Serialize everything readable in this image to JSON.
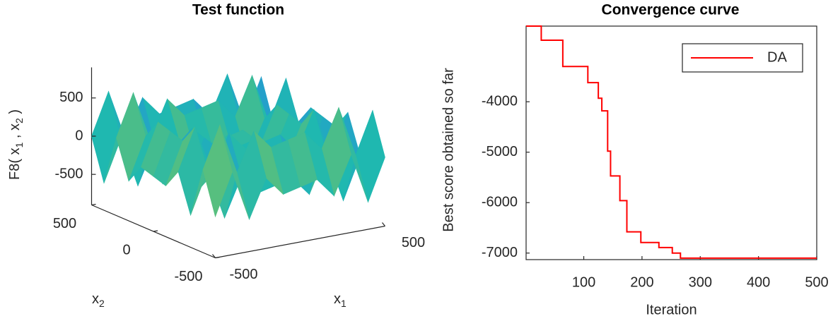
{
  "chart_data": [
    {
      "type": "surface",
      "title": "Test function",
      "zlabel": [
        "F8( x",
        "1",
        " , x",
        "2",
        " )"
      ],
      "xlabel": [
        "x",
        "1"
      ],
      "ylabel": [
        "x",
        "2"
      ],
      "x": [
        -500,
        -400,
        -300,
        -200,
        -100,
        0,
        100,
        200,
        300,
        400,
        500
      ],
      "y": [
        -500,
        -400,
        -300,
        -200,
        -100,
        0,
        100,
        200,
        300,
        400,
        500
      ],
      "z": [
        [
          -362,
          184,
          -481,
          19,
          -235,
          -181,
          -127,
          -381,
          119,
          -546,
          0
        ],
        [
          184,
          730,
          65,
          565,
          311,
          365,
          419,
          165,
          665,
          0,
          546
        ],
        [
          -481,
          65,
          -600,
          -100,
          -354,
          -300,
          -246,
          -500,
          0,
          -665,
          -119
        ],
        [
          19,
          565,
          -100,
          400,
          146,
          200,
          254,
          0,
          500,
          -165,
          381
        ],
        [
          -235,
          311,
          -354,
          146,
          -108,
          -54,
          0,
          -254,
          246,
          -419,
          127
        ],
        [
          -181,
          365,
          -300,
          200,
          -54,
          0,
          54,
          -200,
          300,
          -365,
          181
        ],
        [
          -127,
          419,
          -246,
          254,
          0,
          54,
          108,
          -146,
          354,
          -311,
          235
        ],
        [
          -381,
          165,
          -500,
          0,
          -254,
          -200,
          -146,
          -400,
          100,
          -565,
          -19
        ],
        [
          119,
          665,
          0,
          500,
          246,
          300,
          354,
          100,
          600,
          -65,
          481
        ],
        [
          -546,
          0,
          -665,
          -165,
          -419,
          -365,
          -311,
          -565,
          -65,
          -730,
          -184
        ],
        [
          0,
          546,
          -119,
          381,
          127,
          181,
          235,
          -19,
          481,
          -184,
          362
        ]
      ],
      "xlim": [
        -500,
        500
      ],
      "ylim": [
        -500,
        500
      ],
      "zlim": [
        -900,
        900
      ],
      "xticks": [
        -500,
        500
      ],
      "yticks": [
        -500,
        0,
        500
      ],
      "zticks": [
        -500,
        0,
        500
      ],
      "colormap": [
        "#3e26a8",
        "#2c7ef0",
        "#1fb8b0",
        "#a8c838",
        "#f9fb0e"
      ]
    },
    {
      "type": "line",
      "title": "Convergence curve",
      "xlabel": "Iteration",
      "ylabel": "Best score obtained so far",
      "x": [
        1,
        27,
        27,
        64,
        64,
        107,
        107,
        125,
        125,
        131,
        131,
        141,
        141,
        146,
        146,
        162,
        162,
        174,
        174,
        198,
        198,
        229,
        229,
        252,
        252,
        266,
        266,
        500
      ],
      "series": [
        {
          "name": "DA",
          "color": "#ff0000",
          "values": [
            -2500,
            -2500,
            -2780,
            -2780,
            -3300,
            -3300,
            -3620,
            -3620,
            -3930,
            -3930,
            -4180,
            -4180,
            -4980,
            -4980,
            -5470,
            -5470,
            -5960,
            -5960,
            -6580,
            -6580,
            -6790,
            -6790,
            -6890,
            -6890,
            -7000,
            -7000,
            -7100,
            -7100
          ]
        }
      ],
      "xlim": [
        1,
        500
      ],
      "ylim": [
        -7130,
        -2500
      ],
      "xticks": [
        100,
        200,
        300,
        400,
        500
      ],
      "yticks": [
        -7000,
        -6000,
        -5000,
        -4000
      ],
      "legend": "upper right"
    }
  ]
}
